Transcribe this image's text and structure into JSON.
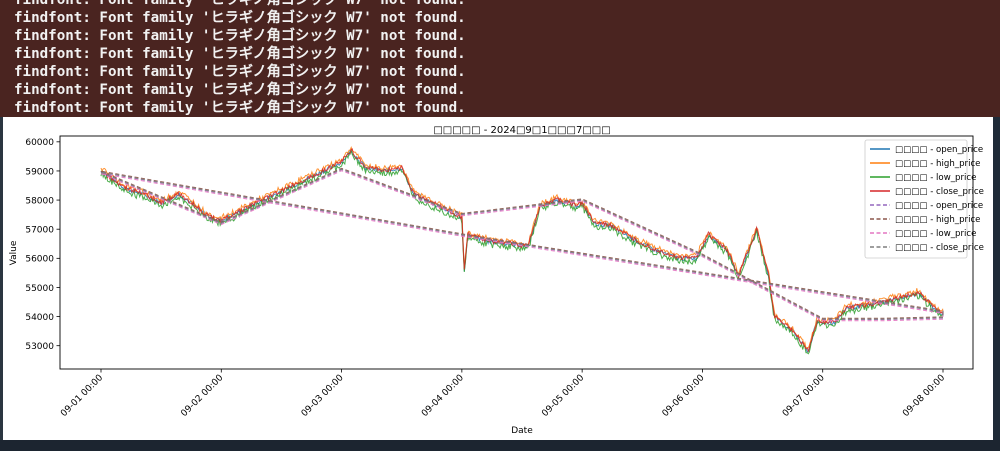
{
  "terminal": {
    "lines": [
      "findfont: Font family 'ヒラギノ角ゴシック W7' not found.",
      "findfont: Font family 'ヒラギノ角ゴシック W7' not found.",
      "findfont: Font family 'ヒラギノ角ゴシック W7' not found.",
      "findfont: Font family 'ヒラギノ角ゴシック W7' not found.",
      "findfont: Font family 'ヒラギノ角ゴシック W7' not found.",
      "findfont: Font family 'ヒラギノ角ゴシック W7' not found.",
      "findfont: Font family 'ヒラギノ角ゴシック W7' not found."
    ]
  },
  "chart_data": {
    "type": "line",
    "title": "□□□□□ - 2024□9□1□□□7□□□",
    "xlabel": "Date",
    "ylabel": "Value",
    "ylim": [
      52200,
      60200
    ],
    "yticks": [
      53000,
      54000,
      55000,
      56000,
      57000,
      58000,
      59000,
      60000
    ],
    "xticks": [
      "09-01 00:00",
      "09-02 00:00",
      "09-03 00:00",
      "09-04 00:00",
      "09-05 00:00",
      "09-06 00:00",
      "09-07 00:00",
      "09-08 00:00"
    ],
    "grid": false,
    "legend_position": "top-right",
    "colors": {
      "open": "#1f77b4",
      "high": "#ff7f0e",
      "low": "#2ca02c",
      "close": "#d62728",
      "ma_open": "#9467bd",
      "ma_high": "#8c564b",
      "ma_low": "#e377c2",
      "ma_close": "#7f7f7f"
    },
    "series": [
      {
        "name": "□□□□ - open_price",
        "style": "solid",
        "color": "#1f77b4"
      },
      {
        "name": "□□□□ - high_price",
        "style": "solid",
        "color": "#ff7f0e"
      },
      {
        "name": "□□□□ - low_price",
        "style": "solid",
        "color": "#2ca02c"
      },
      {
        "name": "□□□□ - close_price",
        "style": "solid",
        "color": "#d62728"
      },
      {
        "name": "□□□□ - open_price",
        "style": "dashed",
        "color": "#9467bd"
      },
      {
        "name": "□□□□ - high_price",
        "style": "dashed",
        "color": "#8c564b"
      },
      {
        "name": "□□□□ - low_price",
        "style": "dashed",
        "color": "#e377c2"
      },
      {
        "name": "□□□□ - close_price",
        "style": "dashed",
        "color": "#7f7f7f"
      }
    ],
    "price_path": [
      [
        0.0,
        59000
      ],
      [
        0.1,
        58700
      ],
      [
        0.2,
        58400
      ],
      [
        0.35,
        58200
      ],
      [
        0.5,
        57900
      ],
      [
        0.65,
        58200
      ],
      [
        0.75,
        57900
      ],
      [
        0.9,
        57400
      ],
      [
        1.0,
        57300
      ],
      [
        1.15,
        57600
      ],
      [
        1.3,
        57900
      ],
      [
        1.5,
        58300
      ],
      [
        1.7,
        58700
      ],
      [
        1.85,
        59000
      ],
      [
        2.0,
        59300
      ],
      [
        2.08,
        59700
      ],
      [
        2.2,
        59100
      ],
      [
        2.35,
        59000
      ],
      [
        2.5,
        59100
      ],
      [
        2.6,
        58200
      ],
      [
        2.75,
        57900
      ],
      [
        2.9,
        57600
      ],
      [
        3.0,
        57400
      ],
      [
        3.02,
        55600
      ],
      [
        3.05,
        56800
      ],
      [
        3.2,
        56600
      ],
      [
        3.4,
        56500
      ],
      [
        3.55,
        56400
      ],
      [
        3.65,
        57800
      ],
      [
        3.8,
        58000
      ],
      [
        3.95,
        57800
      ],
      [
        4.0,
        57900
      ],
      [
        4.1,
        57200
      ],
      [
        4.25,
        57100
      ],
      [
        4.4,
        56700
      ],
      [
        4.6,
        56300
      ],
      [
        4.8,
        56000
      ],
      [
        4.95,
        56000
      ],
      [
        5.05,
        56800
      ],
      [
        5.2,
        56300
      ],
      [
        5.3,
        55400
      ],
      [
        5.45,
        57000
      ],
      [
        5.55,
        55400
      ],
      [
        5.6,
        54000
      ],
      [
        5.75,
        53500
      ],
      [
        5.88,
        52800
      ],
      [
        5.95,
        53800
      ],
      [
        6.1,
        53800
      ],
      [
        6.2,
        54300
      ],
      [
        6.4,
        54400
      ],
      [
        6.6,
        54600
      ],
      [
        6.8,
        54800
      ],
      [
        6.95,
        54200
      ],
      [
        7.0,
        54100
      ]
    ],
    "ma_path": [
      [
        0.0,
        58950
      ],
      [
        1.0,
        57200
      ],
      [
        2.0,
        59050
      ],
      [
        3.0,
        57500
      ],
      [
        4.0,
        58000
      ],
      [
        5.0,
        56100
      ],
      [
        6.0,
        53900
      ],
      [
        6.5,
        53900
      ],
      [
        7.0,
        53950
      ],
      [
        7.0,
        54150
      ],
      [
        3.0,
        56800
      ],
      [
        0.0,
        58950
      ]
    ]
  }
}
